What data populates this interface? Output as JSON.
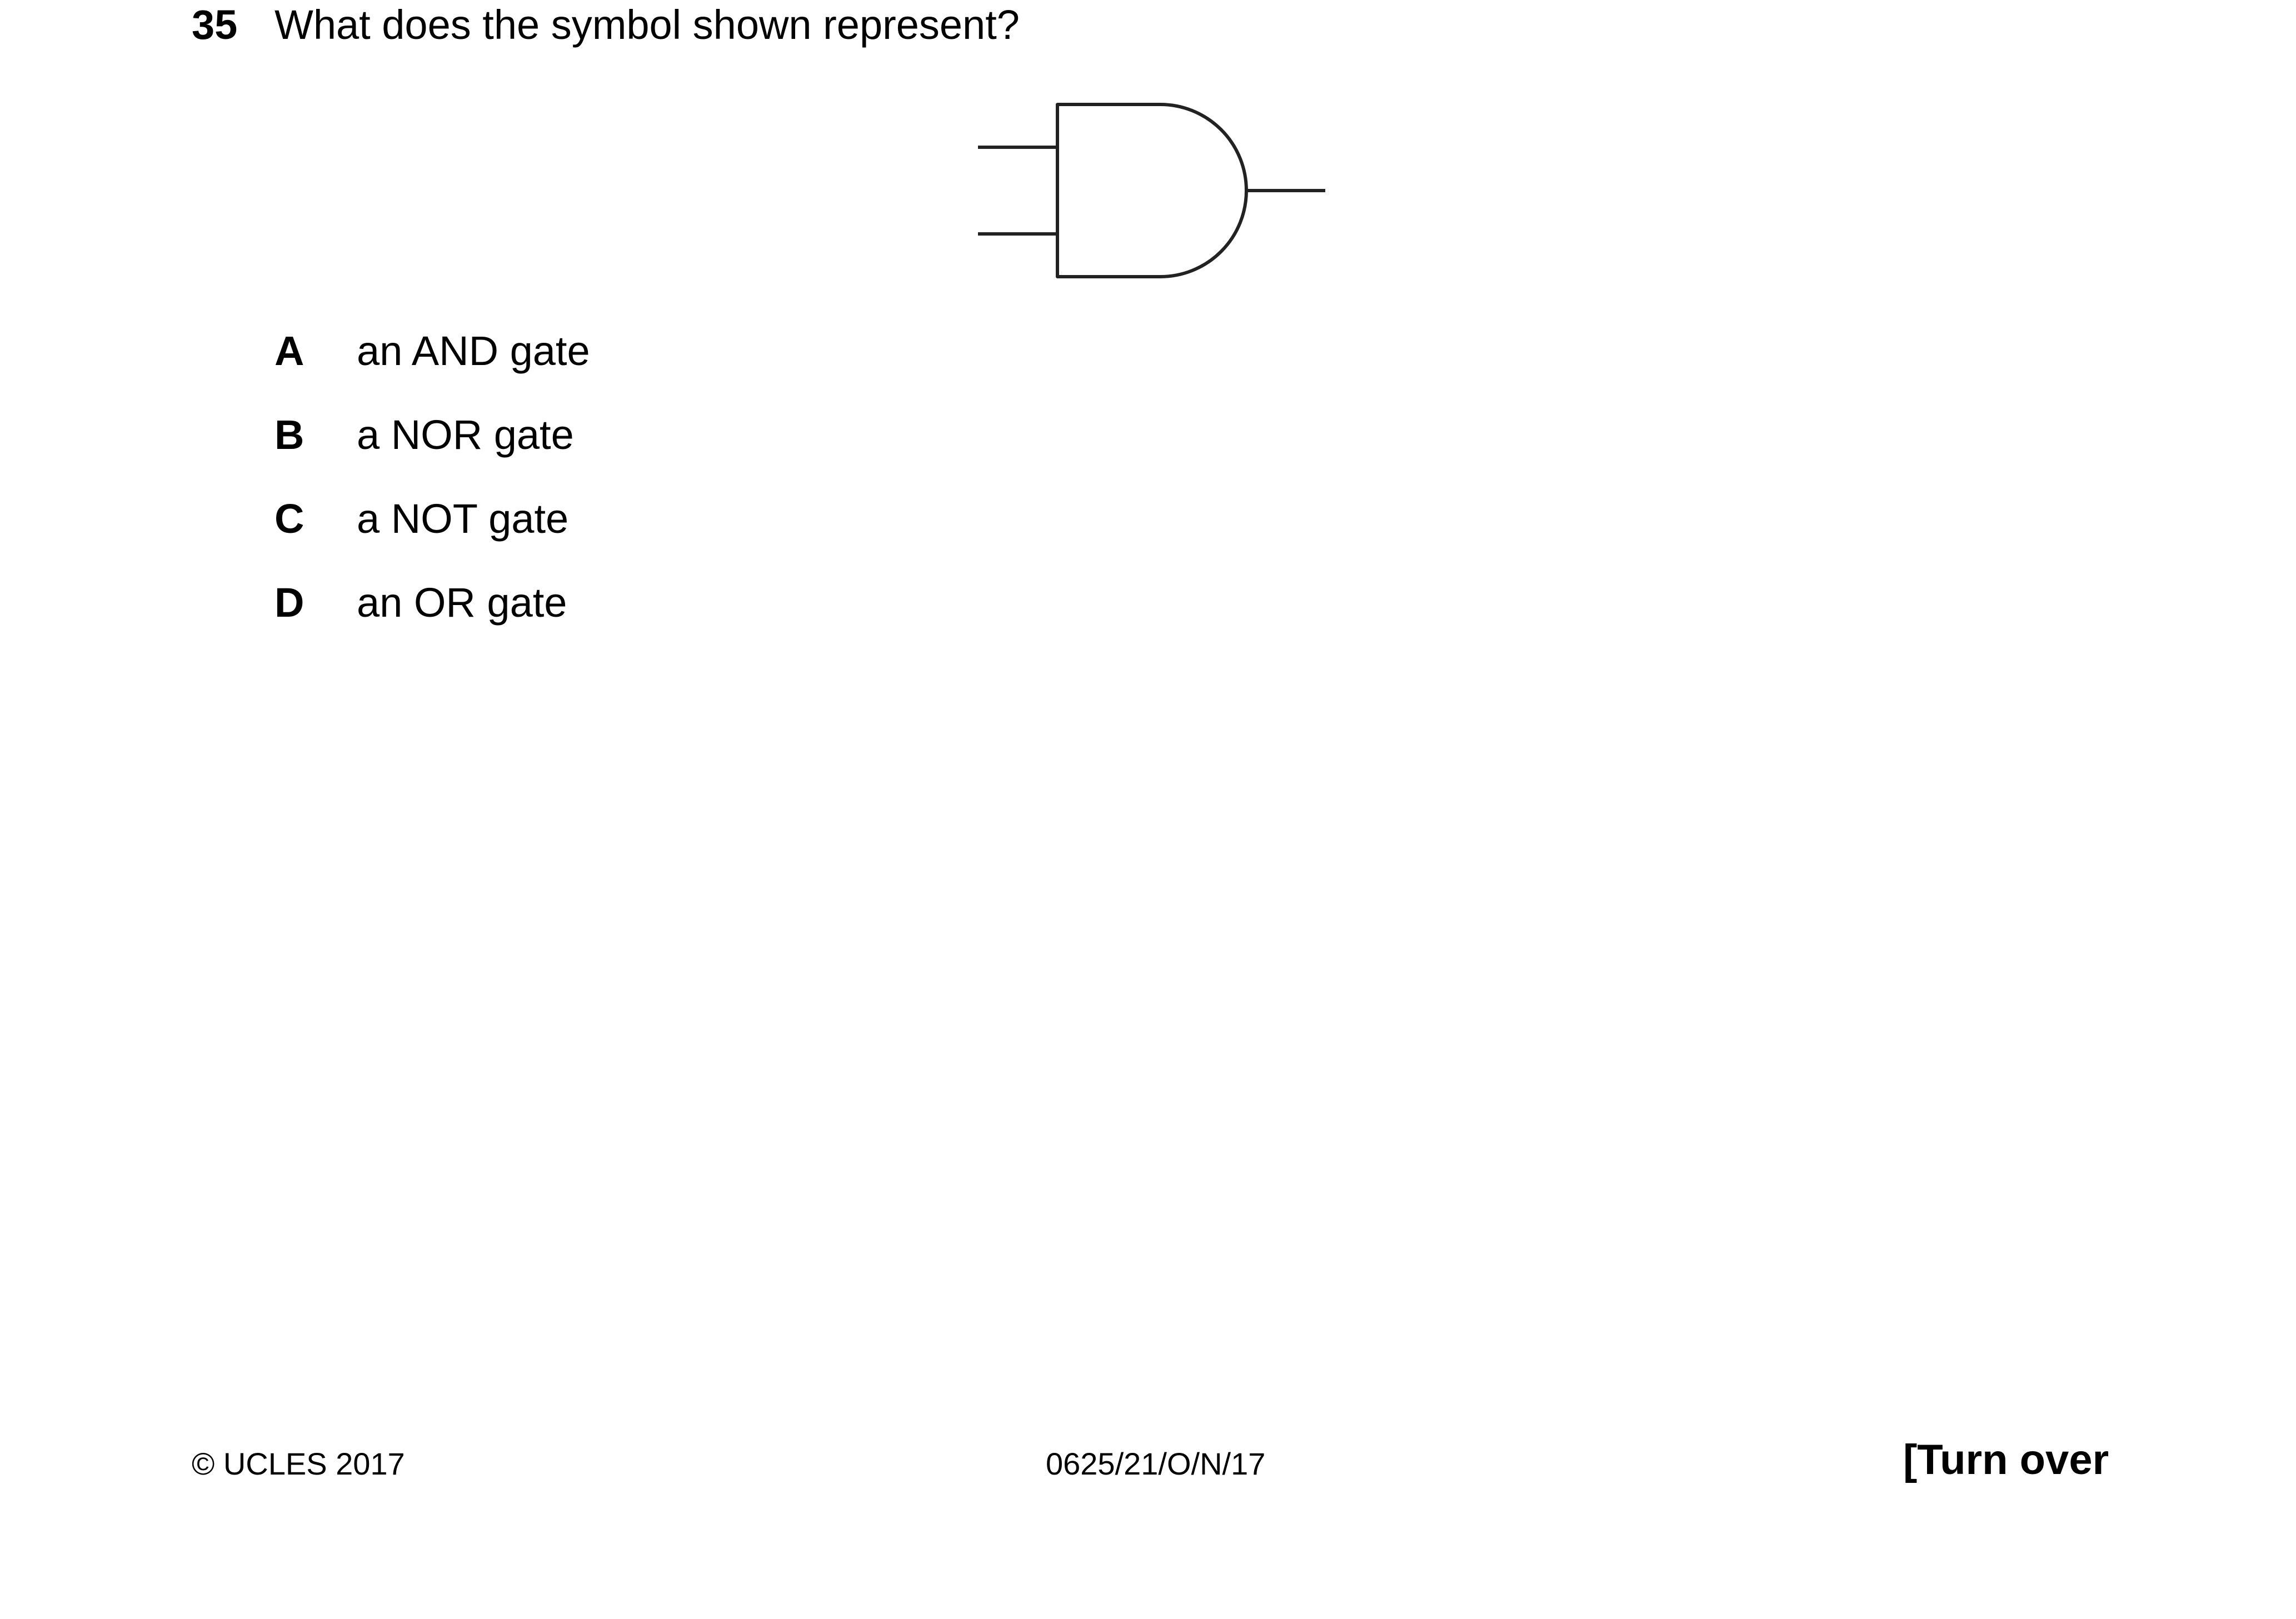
{
  "question": {
    "number": "35",
    "text": "What does the symbol shown represent?"
  },
  "figure": {
    "symbol_icon": "and-gate-symbol-icon"
  },
  "options": [
    {
      "letter": "A",
      "text": "an AND gate"
    },
    {
      "letter": "B",
      "text": "a NOR gate"
    },
    {
      "letter": "C",
      "text": "a NOT gate"
    },
    {
      "letter": "D",
      "text": "an OR gate"
    }
  ],
  "footer": {
    "copyright": "© UCLES 2017",
    "paper_code": "0625/21/O/N/17",
    "turn_over": "[Turn over"
  }
}
